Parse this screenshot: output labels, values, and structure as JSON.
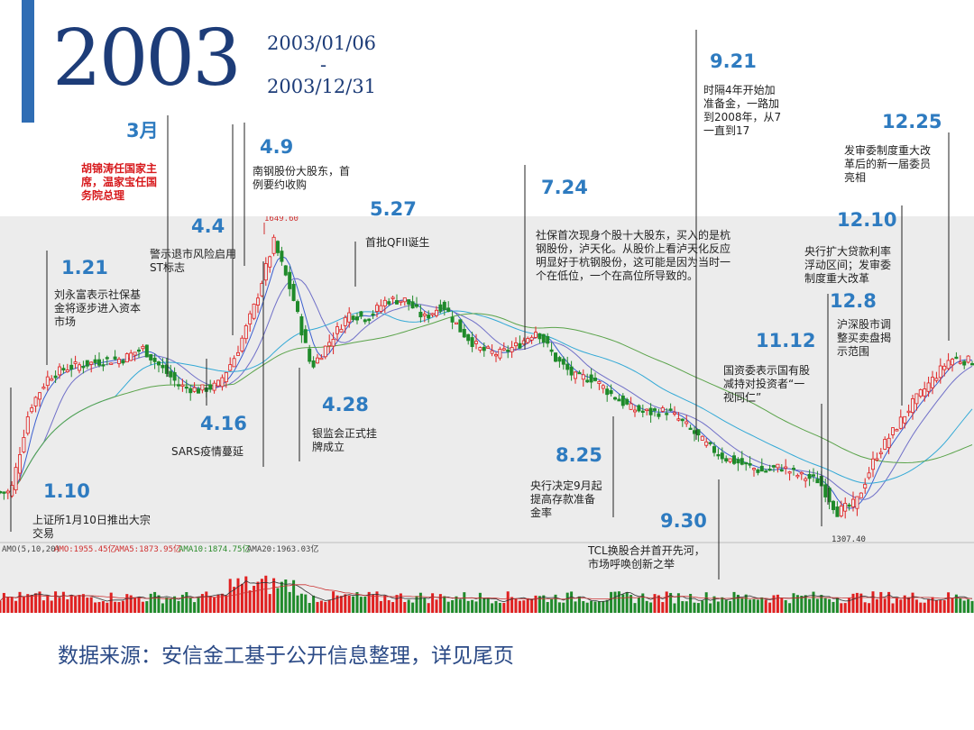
{
  "header": {
    "year": "2003",
    "date_start": "2003/01/06",
    "date_sep": "-",
    "date_end": "2003/12/31"
  },
  "footer": {
    "source": "数据来源：安信金工基于公开信息整理，详见尾页"
  },
  "indicator": {
    "label": "AMO(5,10,20)",
    "amo": "AMO:1955.45亿",
    "amo5": "AMA5:1873.95亿",
    "amo10": "AMA10:1874.75亿",
    "amo20": "AMA20:1963.03亿"
  },
  "colors": {
    "accent": "#2f6db4",
    "up": "#e02020",
    "down": "#1f8a2a",
    "ma_blue": "#3b5fd0",
    "ma_green": "#5aa34a",
    "ma_cyan": "#33a9d6",
    "date_blue": "#2e7bc0",
    "red_text": "#d7191c"
  },
  "events": [
    {
      "date": "1.10",
      "text": "上证所1月10日推出大宗交易"
    },
    {
      "date": "1.21",
      "text": "刘永富表示社保基金将逐步进入资本市场"
    },
    {
      "date": "3月",
      "text": "胡锦涛任国家主席，温家宝任国务院总理",
      "highlight": true
    },
    {
      "date": "4.4",
      "text": "警示退市风险启用ST标志"
    },
    {
      "date": "4.9",
      "text": "南钢股份大股东，首例要约收购"
    },
    {
      "date": "4.16",
      "text": "SARS疫情蔓延"
    },
    {
      "date": "4.28",
      "text": "银监会正式挂牌成立"
    },
    {
      "date": "5.27",
      "text": "首批QFII诞生"
    },
    {
      "date": "7.24",
      "text": "社保首次现身个股十大股东，买入的是杭钢股份，泸天化。从股价上看泸天化反应明显好于杭钢股份，这可能是因为当时一个在低位，一个在高位所导致的。"
    },
    {
      "date": "8.25",
      "text": "央行决定9月起提高存款准备金率"
    },
    {
      "date": "9.21",
      "text": "时隔4年开始加准备金，一路加到2008年，从7一直到17"
    },
    {
      "date": "9.30",
      "text": "TCL换股合并首开先河，市场呼唤创新之举"
    },
    {
      "date": "11.12",
      "text": "国资委表示国有股减持对投资者“一视同仁”"
    },
    {
      "date": "12.8",
      "text": "沪深股市调整买卖盘揭示范围"
    },
    {
      "date": "12.10",
      "text": "央行扩大贷款利率浮动区间；发审委制度重大改革"
    },
    {
      "date": "12.25",
      "text": "发审委制度重大改革后的新一届委员亮相"
    }
  ],
  "chart_data": {
    "type": "line",
    "title": "",
    "price_series_name": "",
    "x_range": [
      "2003-01-02",
      "2003-12-31"
    ],
    "annotations": [
      {
        "label": "1649.60",
        "x": "2003-04-16",
        "y": 1649.6
      },
      {
        "label": "1307.40",
        "x": "2003-11-13",
        "y": 1307.4
      }
    ],
    "weekly_close": [
      [
        "2003-01-06",
        1352
      ],
      [
        "2003-01-13",
        1445
      ],
      [
        "2003-01-20",
        1480
      ],
      [
        "2003-01-27",
        1490
      ],
      [
        "2003-02-10",
        1498
      ],
      [
        "2003-02-17",
        1500
      ],
      [
        "2003-02-24",
        1512
      ],
      [
        "2003-03-03",
        1490
      ],
      [
        "2003-03-10",
        1470
      ],
      [
        "2003-03-17",
        1465
      ],
      [
        "2003-03-24",
        1470
      ],
      [
        "2003-03-31",
        1505
      ],
      [
        "2003-04-07",
        1560
      ],
      [
        "2003-04-14",
        1630
      ],
      [
        "2003-04-21",
        1570
      ],
      [
        "2003-04-28",
        1490
      ],
      [
        "2003-05-05",
        1520
      ],
      [
        "2003-05-12",
        1550
      ],
      [
        "2003-05-19",
        1545
      ],
      [
        "2003-05-26",
        1565
      ],
      [
        "2003-06-02",
        1565
      ],
      [
        "2003-06-09",
        1545
      ],
      [
        "2003-06-16",
        1560
      ],
      [
        "2003-06-23",
        1530
      ],
      [
        "2003-06-30",
        1510
      ],
      [
        "2003-07-07",
        1505
      ],
      [
        "2003-07-14",
        1515
      ],
      [
        "2003-07-21",
        1532
      ],
      [
        "2003-07-28",
        1500
      ],
      [
        "2003-08-04",
        1480
      ],
      [
        "2003-08-11",
        1478
      ],
      [
        "2003-08-18",
        1460
      ],
      [
        "2003-08-25",
        1445
      ],
      [
        "2003-09-01",
        1440
      ],
      [
        "2003-09-08",
        1442
      ],
      [
        "2003-09-15",
        1425
      ],
      [
        "2003-09-22",
        1405
      ],
      [
        "2003-09-29",
        1390
      ],
      [
        "2003-10-13",
        1375
      ],
      [
        "2003-10-20",
        1380
      ],
      [
        "2003-10-27",
        1370
      ],
      [
        "2003-11-03",
        1365
      ],
      [
        "2003-11-10",
        1330
      ],
      [
        "2003-11-17",
        1340
      ],
      [
        "2003-11-24",
        1390
      ],
      [
        "2003-12-01",
        1420
      ],
      [
        "2003-12-08",
        1450
      ],
      [
        "2003-12-15",
        1475
      ],
      [
        "2003-12-22",
        1500
      ],
      [
        "2003-12-31",
        1497
      ]
    ]
  }
}
